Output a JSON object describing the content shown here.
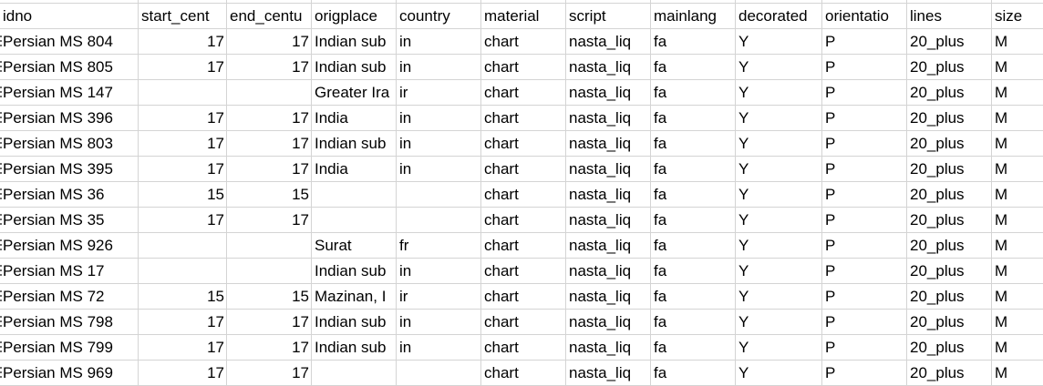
{
  "columns": [
    "idno",
    "start_cent",
    "end_centu",
    "origplace",
    "country",
    "material",
    "script",
    "mainlang",
    "decorated",
    "orientatio",
    "lines",
    "size"
  ],
  "rows": [
    [
      "Persian MS 804",
      "17",
      "17",
      "Indian sub",
      "in",
      "chart",
      "nasta_liq",
      "fa",
      "Y",
      "P",
      "20_plus",
      "M"
    ],
    [
      "Persian MS 805",
      "17",
      "17",
      "Indian sub",
      "in",
      "chart",
      "nasta_liq",
      "fa",
      "Y",
      "P",
      "20_plus",
      "M"
    ],
    [
      "Persian MS 147",
      "",
      "",
      "Greater Ira",
      "ir",
      "chart",
      "nasta_liq",
      "fa",
      "Y",
      "P",
      "20_plus",
      "M"
    ],
    [
      "Persian MS 396",
      "17",
      "17",
      "India",
      "in",
      "chart",
      "nasta_liq",
      "fa",
      "Y",
      "P",
      "20_plus",
      "M"
    ],
    [
      "Persian MS 803",
      "17",
      "17",
      "Indian sub",
      "in",
      "chart",
      "nasta_liq",
      "fa",
      "Y",
      "P",
      "20_plus",
      "M"
    ],
    [
      "Persian MS 395",
      "17",
      "17",
      "India",
      "in",
      "chart",
      "nasta_liq",
      "fa",
      "Y",
      "P",
      "20_plus",
      "M"
    ],
    [
      "Persian MS 36",
      "15",
      "15",
      "",
      "",
      "chart",
      "nasta_liq",
      "fa",
      "Y",
      "P",
      "20_plus",
      "M"
    ],
    [
      "Persian MS 35",
      "17",
      "17",
      "",
      "",
      "chart",
      "nasta_liq",
      "fa",
      "Y",
      "P",
      "20_plus",
      "M"
    ],
    [
      "Persian MS 926",
      "",
      "",
      "Surat",
      "fr",
      "chart",
      "nasta_liq",
      "fa",
      "Y",
      "P",
      "20_plus",
      "M"
    ],
    [
      "Persian MS 17",
      "",
      "",
      "Indian sub",
      "in",
      "chart",
      "nasta_liq",
      "fa",
      "Y",
      "P",
      "20_plus",
      "M"
    ],
    [
      "Persian MS 72",
      "15",
      "15",
      "Mazinan, I",
      "ir",
      "chart",
      "nasta_liq",
      "fa",
      "Y",
      "P",
      "20_plus",
      "M"
    ],
    [
      "Persian MS 798",
      "17",
      "17",
      "Indian sub",
      "in",
      "chart",
      "nasta_liq",
      "fa",
      "Y",
      "P",
      "20_plus",
      "M"
    ],
    [
      "Persian MS 799",
      "17",
      "17",
      "Indian sub",
      "in",
      "chart",
      "nasta_liq",
      "fa",
      "Y",
      "P",
      "20_plus",
      "M"
    ],
    [
      "Persian MS 969",
      "17",
      "17",
      "",
      "",
      "chart",
      "nasta_liq",
      "fa",
      "Y",
      "P",
      "20_plus",
      "M"
    ]
  ],
  "colors": {
    "gridline": "#d4d4d4",
    "text": "#000000",
    "background": "#ffffff"
  }
}
